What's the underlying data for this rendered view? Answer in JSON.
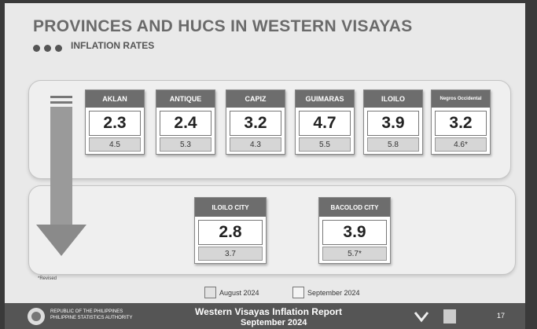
{
  "header": {
    "title": "PROVINCES AND HUCS IN WESTERN VISAYAS",
    "subtitle": "INFLATION RATES"
  },
  "provinces": [
    {
      "name": "AKLAN",
      "september": "2.3",
      "august": "4.5"
    },
    {
      "name": "ANTIQUE",
      "september": "2.4",
      "august": "5.3"
    },
    {
      "name": "CAPIZ",
      "september": "3.2",
      "august": "4.3"
    },
    {
      "name": "GUIMARAS",
      "september": "4.7",
      "august": "5.5"
    },
    {
      "name": "ILOILO",
      "september": "3.9",
      "august": "5.8"
    },
    {
      "name": "Negros Occidental",
      "september": "3.2",
      "august": "4.6*"
    }
  ],
  "cities": [
    {
      "name": "ILOILO CITY",
      "september": "2.8",
      "august": "3.7"
    },
    {
      "name": "BACOLOD CITY",
      "september": "3.9",
      "august": "5.7*"
    }
  ],
  "note": "*Revised",
  "legend": [
    "August 2024",
    "September 2024"
  ],
  "footer": {
    "org_line1": "REPUBLIC OF THE PHILIPPINES",
    "org_line2": "PHILIPPINE STATISTICS AUTHORITY",
    "report": "Western Visayas Inflation Report",
    "period": "September 2024",
    "page": "17"
  }
}
